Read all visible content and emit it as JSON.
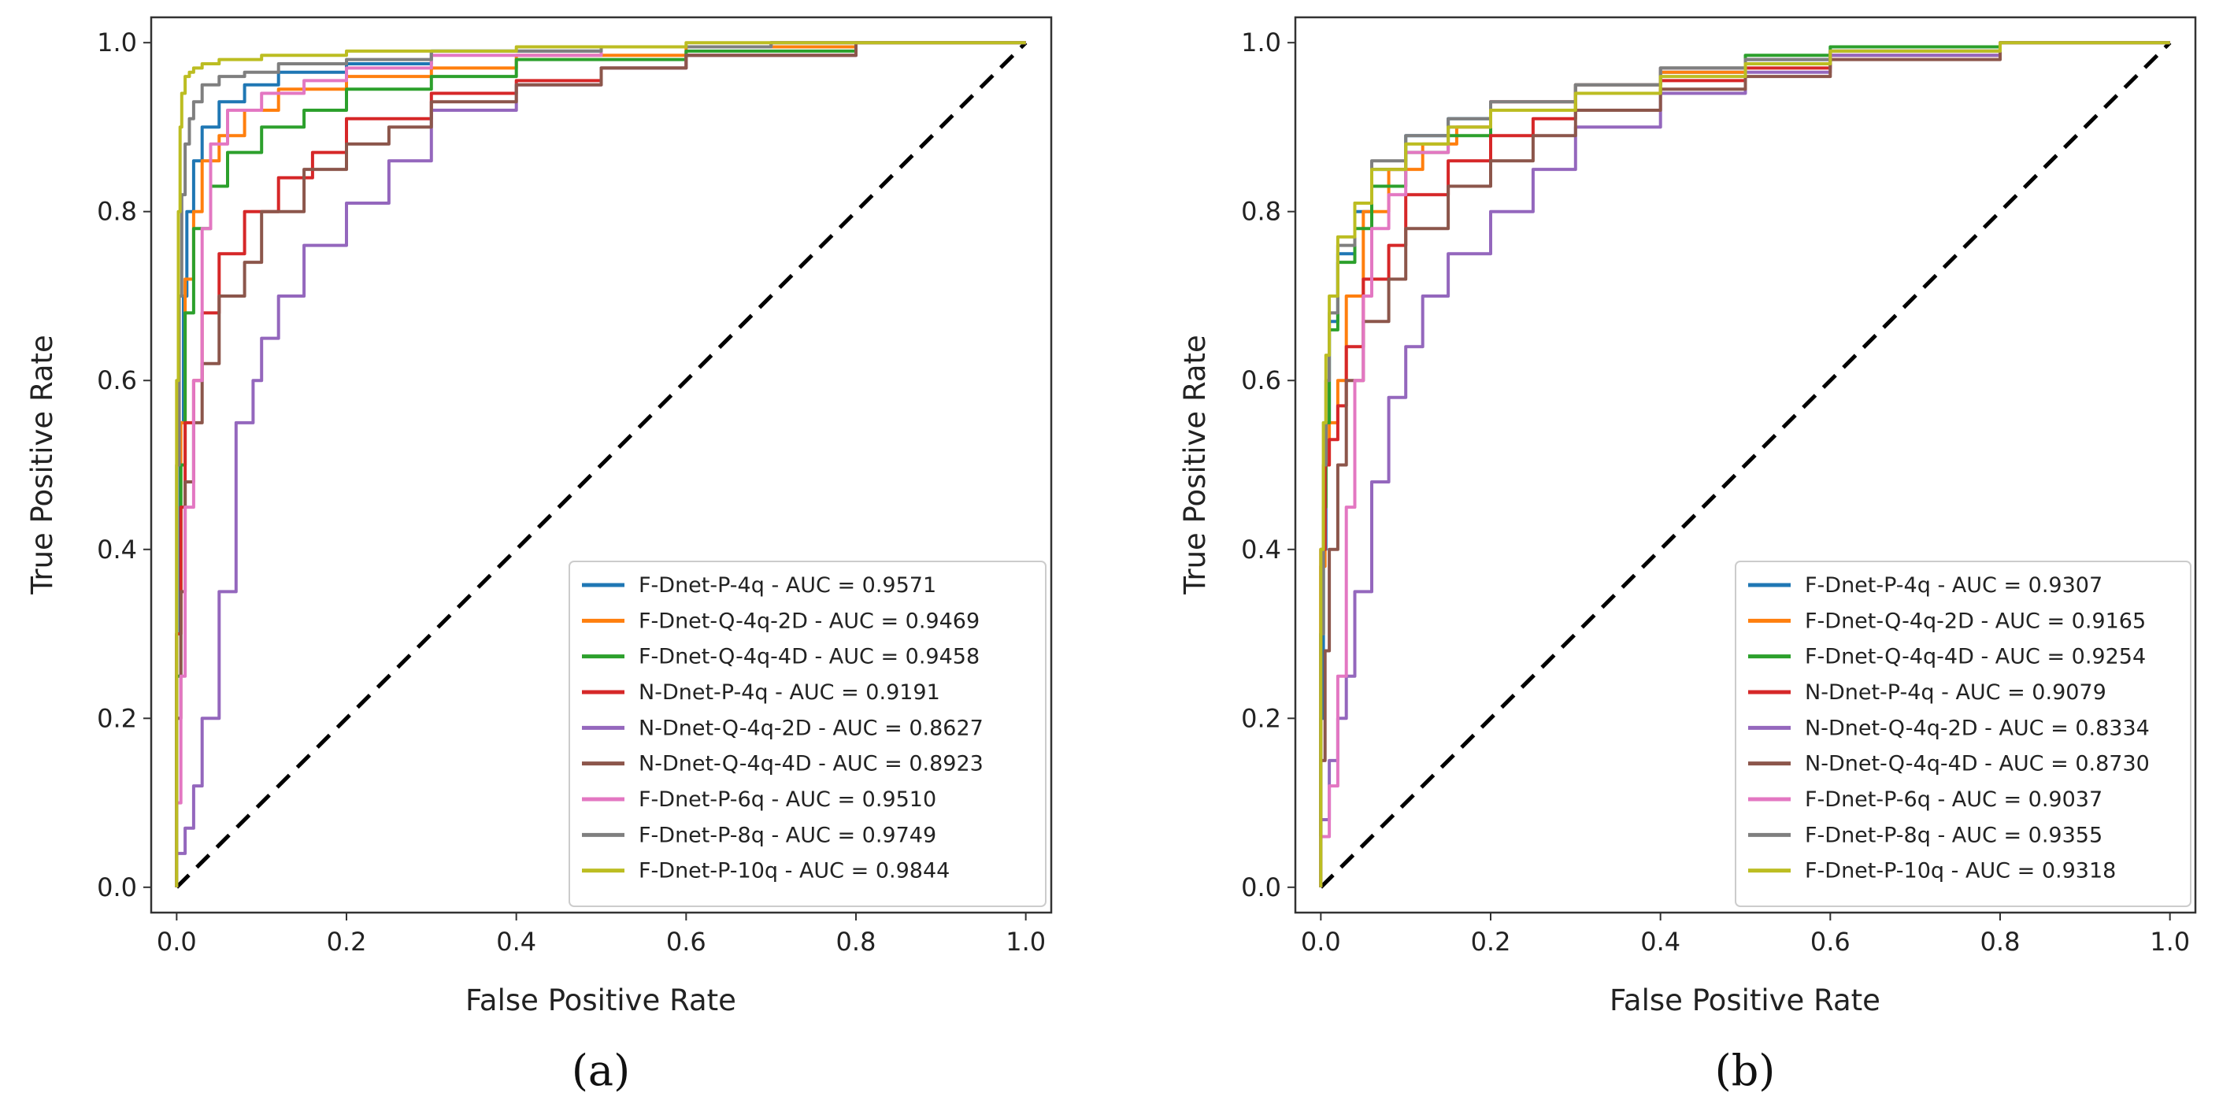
{
  "chart_data": [
    {
      "type": "line",
      "panel_label": "(a)",
      "xlabel": "False Positive Rate",
      "ylabel": "True Positive Rate",
      "xlim": [
        -0.03,
        1.03
      ],
      "ylim": [
        -0.03,
        1.03
      ],
      "xticks": [
        "0.0",
        "0.2",
        "0.4",
        "0.6",
        "0.8",
        "1.0"
      ],
      "yticks": [
        "0.0",
        "0.2",
        "0.4",
        "0.6",
        "0.8",
        "1.0"
      ],
      "legend_location": "lower-right",
      "diagonal": {
        "x": [
          0,
          1
        ],
        "y": [
          0,
          1
        ],
        "style": "dashed",
        "color": "#000000"
      },
      "series": [
        {
          "name": "F-Dnet-P-4q - AUC = 0.9571",
          "color": "#1f77b4",
          "x": [
            0,
            0.004,
            0.008,
            0.012,
            0.02,
            0.03,
            0.05,
            0.08,
            0.12,
            0.2,
            0.3,
            0.5,
            0.7,
            1.0
          ],
          "y": [
            0,
            0.3,
            0.55,
            0.7,
            0.8,
            0.86,
            0.9,
            0.93,
            0.95,
            0.965,
            0.975,
            0.99,
            0.995,
            1.0
          ]
        },
        {
          "name": "F-Dnet-Q-4q-2D - AUC = 0.9469",
          "color": "#ff7f0e",
          "x": [
            0,
            0.005,
            0.01,
            0.02,
            0.03,
            0.05,
            0.08,
            0.12,
            0.2,
            0.3,
            0.4,
            0.6,
            0.8,
            1.0
          ],
          "y": [
            0,
            0.3,
            0.55,
            0.72,
            0.8,
            0.86,
            0.89,
            0.92,
            0.945,
            0.96,
            0.97,
            0.985,
            0.995,
            1.0
          ]
        },
        {
          "name": "F-Dnet-Q-4q-4D - AUC = 0.9458",
          "color": "#2ca02c",
          "x": [
            0,
            0.005,
            0.01,
            0.02,
            0.04,
            0.06,
            0.1,
            0.15,
            0.2,
            0.3,
            0.4,
            0.6,
            0.8,
            1.0
          ],
          "y": [
            0,
            0.25,
            0.5,
            0.68,
            0.78,
            0.83,
            0.87,
            0.9,
            0.92,
            0.945,
            0.96,
            0.98,
            0.99,
            1.0
          ]
        },
        {
          "name": "N-Dnet-P-4q - AUC = 0.9191",
          "color": "#d62728",
          "x": [
            0,
            0.005,
            0.01,
            0.02,
            0.03,
            0.05,
            0.08,
            0.12,
            0.16,
            0.2,
            0.3,
            0.4,
            0.5,
            0.6,
            0.8,
            1.0
          ],
          "y": [
            0,
            0.3,
            0.45,
            0.55,
            0.6,
            0.68,
            0.75,
            0.8,
            0.84,
            0.87,
            0.91,
            0.94,
            0.955,
            0.97,
            0.985,
            1.0
          ]
        },
        {
          "name": "N-Dnet-Q-4q-2D - AUC = 0.8627",
          "color": "#9467bd",
          "x": [
            0,
            0.01,
            0.02,
            0.03,
            0.05,
            0.07,
            0.09,
            0.1,
            0.12,
            0.15,
            0.2,
            0.25,
            0.3,
            0.4,
            0.5,
            0.6,
            0.8,
            1.0
          ],
          "y": [
            0,
            0.04,
            0.07,
            0.12,
            0.2,
            0.35,
            0.55,
            0.6,
            0.65,
            0.7,
            0.76,
            0.81,
            0.86,
            0.92,
            0.95,
            0.97,
            0.985,
            1.0
          ]
        },
        {
          "name": "N-Dnet-Q-4q-4D - AUC = 0.8923",
          "color": "#8c564b",
          "x": [
            0,
            0.005,
            0.01,
            0.02,
            0.03,
            0.05,
            0.08,
            0.1,
            0.15,
            0.2,
            0.25,
            0.3,
            0.4,
            0.5,
            0.6,
            0.8,
            1.0
          ],
          "y": [
            0,
            0.2,
            0.35,
            0.48,
            0.55,
            0.62,
            0.7,
            0.74,
            0.8,
            0.85,
            0.88,
            0.9,
            0.93,
            0.95,
            0.97,
            0.985,
            1.0
          ]
        },
        {
          "name": "F-Dnet-P-6q - AUC = 0.9510",
          "color": "#e377c2",
          "x": [
            0,
            0.005,
            0.01,
            0.02,
            0.03,
            0.04,
            0.06,
            0.1,
            0.15,
            0.2,
            0.3,
            0.5,
            0.7,
            1.0
          ],
          "y": [
            0,
            0.1,
            0.25,
            0.45,
            0.6,
            0.78,
            0.88,
            0.92,
            0.94,
            0.955,
            0.97,
            0.985,
            0.995,
            1.0
          ]
        },
        {
          "name": "F-Dnet-P-8q - AUC = 0.9749",
          "color": "#7f7f7f",
          "x": [
            0,
            0.003,
            0.006,
            0.01,
            0.015,
            0.02,
            0.03,
            0.05,
            0.08,
            0.12,
            0.2,
            0.3,
            0.5,
            0.7,
            1.0
          ],
          "y": [
            0,
            0.5,
            0.7,
            0.82,
            0.88,
            0.91,
            0.93,
            0.95,
            0.96,
            0.965,
            0.975,
            0.98,
            0.99,
            0.995,
            1.0
          ]
        },
        {
          "name": "F-Dnet-P-10q - AUC = 0.9844",
          "color": "#bcbd22",
          "x": [
            0,
            0.002,
            0.004,
            0.006,
            0.01,
            0.015,
            0.02,
            0.03,
            0.05,
            0.1,
            0.2,
            0.4,
            0.6,
            1.0
          ],
          "y": [
            0,
            0.6,
            0.8,
            0.9,
            0.94,
            0.96,
            0.965,
            0.97,
            0.975,
            0.98,
            0.985,
            0.99,
            0.995,
            1.0
          ]
        }
      ]
    },
    {
      "type": "line",
      "panel_label": "(b)",
      "xlabel": "False Positive Rate",
      "ylabel": "True Positive Rate",
      "xlim": [
        -0.03,
        1.03
      ],
      "ylim": [
        -0.03,
        1.03
      ],
      "xticks": [
        "0.0",
        "0.2",
        "0.4",
        "0.6",
        "0.8",
        "1.0"
      ],
      "yticks": [
        "0.0",
        "0.2",
        "0.4",
        "0.6",
        "0.8",
        "1.0"
      ],
      "legend_location": "lower-right",
      "diagonal": {
        "x": [
          0,
          1
        ],
        "y": [
          0,
          1
        ],
        "style": "dashed",
        "color": "#000000"
      },
      "series": [
        {
          "name": "F-Dnet-P-4q - AUC = 0.9307",
          "color": "#1f77b4",
          "x": [
            0,
            0.003,
            0.006,
            0.01,
            0.02,
            0.04,
            0.06,
            0.1,
            0.15,
            0.2,
            0.3,
            0.4,
            0.5,
            0.6,
            0.8,
            1.0
          ],
          "y": [
            0,
            0.2,
            0.4,
            0.55,
            0.67,
            0.75,
            0.8,
            0.85,
            0.89,
            0.91,
            0.93,
            0.95,
            0.965,
            0.98,
            0.99,
            1.0
          ]
        },
        {
          "name": "F-Dnet-Q-4q-2D - AUC = 0.9165",
          "color": "#ff7f0e",
          "x": [
            0,
            0.005,
            0.01,
            0.02,
            0.03,
            0.05,
            0.08,
            0.12,
            0.16,
            0.2,
            0.3,
            0.4,
            0.5,
            0.6,
            0.8,
            1.0
          ],
          "y": [
            0,
            0.38,
            0.5,
            0.55,
            0.6,
            0.7,
            0.8,
            0.85,
            0.88,
            0.9,
            0.93,
            0.95,
            0.965,
            0.975,
            0.99,
            1.0
          ]
        },
        {
          "name": "F-Dnet-Q-4q-4D - AUC = 0.9254",
          "color": "#2ca02c",
          "x": [
            0,
            0.003,
            0.006,
            0.01,
            0.02,
            0.04,
            0.06,
            0.1,
            0.15,
            0.2,
            0.3,
            0.4,
            0.5,
            0.6,
            0.8,
            1.0
          ],
          "y": [
            0,
            0.3,
            0.45,
            0.55,
            0.66,
            0.74,
            0.78,
            0.83,
            0.87,
            0.89,
            0.92,
            0.95,
            0.97,
            0.985,
            0.995,
            1.0
          ]
        },
        {
          "name": "N-Dnet-P-4q - AUC = 0.9079",
          "color": "#d62728",
          "x": [
            0,
            0.005,
            0.01,
            0.02,
            0.03,
            0.05,
            0.08,
            0.1,
            0.15,
            0.2,
            0.25,
            0.3,
            0.4,
            0.5,
            0.6,
            0.8,
            1.0
          ],
          "y": [
            0,
            0.4,
            0.5,
            0.53,
            0.57,
            0.64,
            0.72,
            0.76,
            0.82,
            0.86,
            0.89,
            0.91,
            0.94,
            0.955,
            0.97,
            0.985,
            1.0
          ]
        },
        {
          "name": "N-Dnet-Q-4q-2D - AUC = 0.8334",
          "color": "#9467bd",
          "x": [
            0,
            0.01,
            0.02,
            0.03,
            0.04,
            0.06,
            0.08,
            0.1,
            0.12,
            0.15,
            0.2,
            0.25,
            0.3,
            0.4,
            0.5,
            0.6,
            0.8,
            1.0
          ],
          "y": [
            0,
            0.08,
            0.15,
            0.2,
            0.25,
            0.35,
            0.48,
            0.58,
            0.64,
            0.7,
            0.75,
            0.8,
            0.85,
            0.9,
            0.94,
            0.965,
            0.985,
            1.0
          ]
        },
        {
          "name": "N-Dnet-Q-4q-4D - AUC = 0.8730",
          "color": "#8c564b",
          "x": [
            0,
            0.005,
            0.01,
            0.02,
            0.03,
            0.05,
            0.08,
            0.1,
            0.15,
            0.2,
            0.25,
            0.3,
            0.4,
            0.5,
            0.6,
            0.8,
            1.0
          ],
          "y": [
            0,
            0.15,
            0.28,
            0.4,
            0.5,
            0.6,
            0.67,
            0.72,
            0.78,
            0.83,
            0.86,
            0.89,
            0.92,
            0.945,
            0.96,
            0.98,
            1.0
          ]
        },
        {
          "name": "F-Dnet-P-6q - AUC = 0.9037",
          "color": "#e377c2",
          "x": [
            0,
            0.01,
            0.02,
            0.03,
            0.04,
            0.05,
            0.06,
            0.08,
            0.1,
            0.15,
            0.2,
            0.3,
            0.4,
            0.5,
            0.6,
            0.8,
            1.0
          ],
          "y": [
            0,
            0.06,
            0.12,
            0.25,
            0.45,
            0.6,
            0.7,
            0.78,
            0.82,
            0.87,
            0.9,
            0.93,
            0.95,
            0.97,
            0.98,
            0.99,
            1.0
          ]
        },
        {
          "name": "F-Dnet-P-8q - AUC = 0.9355",
          "color": "#7f7f7f",
          "x": [
            0,
            0.003,
            0.006,
            0.01,
            0.02,
            0.04,
            0.06,
            0.1,
            0.15,
            0.2,
            0.3,
            0.4,
            0.5,
            0.6,
            0.8,
            1.0
          ],
          "y": [
            0,
            0.3,
            0.5,
            0.6,
            0.68,
            0.76,
            0.81,
            0.86,
            0.89,
            0.91,
            0.93,
            0.95,
            0.97,
            0.98,
            0.99,
            1.0
          ]
        },
        {
          "name": "F-Dnet-P-10q - AUC = 0.9318",
          "color": "#bcbd22",
          "x": [
            0,
            0.003,
            0.006,
            0.01,
            0.02,
            0.04,
            0.06,
            0.1,
            0.15,
            0.2,
            0.3,
            0.4,
            0.5,
            0.6,
            0.8,
            1.0
          ],
          "y": [
            0,
            0.4,
            0.55,
            0.63,
            0.7,
            0.77,
            0.81,
            0.85,
            0.88,
            0.9,
            0.92,
            0.94,
            0.96,
            0.975,
            0.99,
            1.0
          ]
        }
      ]
    }
  ]
}
